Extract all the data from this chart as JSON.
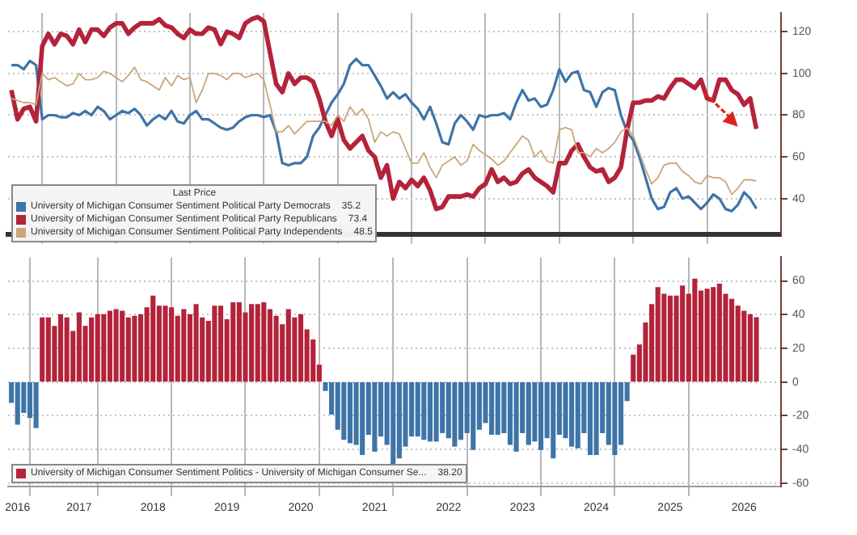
{
  "chart_data": [
    {
      "type": "line",
      "tick_labels": "y",
      "grid": true,
      "legend": "bottom left",
      "legend_title": "Last Price",
      "x": [
        "2016-08",
        "2016-09",
        "2016-10",
        "2016-11",
        "2016-12",
        "2017-01",
        "2017-02",
        "2017-03",
        "2017-04",
        "2017-05",
        "2017-06",
        "2017-07",
        "2017-08",
        "2017-09",
        "2017-10",
        "2017-11",
        "2017-12",
        "2018-01",
        "2018-02",
        "2018-03",
        "2018-04",
        "2018-05",
        "2018-06",
        "2018-07",
        "2018-08",
        "2018-09",
        "2018-10",
        "2018-11",
        "2018-12",
        "2019-01",
        "2019-02",
        "2019-03",
        "2019-04",
        "2019-05",
        "2019-06",
        "2019-07",
        "2019-08",
        "2019-09",
        "2019-10",
        "2019-11",
        "2019-12",
        "2020-01",
        "2020-02",
        "2020-03",
        "2020-04",
        "2020-05",
        "2020-06",
        "2020-07",
        "2020-08",
        "2020-09",
        "2020-10",
        "2020-11",
        "2020-12",
        "2021-01",
        "2021-02",
        "2021-03",
        "2021-04",
        "2021-05",
        "2021-06",
        "2021-07",
        "2021-08",
        "2021-09",
        "2021-10",
        "2021-11",
        "2021-12",
        "2022-01",
        "2022-02",
        "2022-03",
        "2022-04",
        "2022-05",
        "2022-06",
        "2022-07",
        "2022-08",
        "2022-09",
        "2022-10",
        "2022-11",
        "2022-12",
        "2023-01",
        "2023-02",
        "2023-03",
        "2023-04",
        "2023-05",
        "2023-06",
        "2023-07",
        "2023-08",
        "2023-09",
        "2023-10",
        "2023-11",
        "2023-12",
        "2024-01",
        "2024-02",
        "2024-03",
        "2024-04",
        "2024-05",
        "2024-06",
        "2024-07",
        "2024-08",
        "2024-09",
        "2024-10",
        "2024-11",
        "2024-12",
        "2025-01",
        "2025-02",
        "2025-03",
        "2025-04",
        "2025-05",
        "2025-06",
        "2025-07",
        "2025-08",
        "2025-09",
        "2025-10",
        "2025-11",
        "2025-12",
        "2026-01",
        "2026-02",
        "2026-03",
        "2026-04",
        "2026-05",
        "2026-06",
        "2026-07",
        "2026-08",
        "2026-09"
      ],
      "xlim": [
        "2016-07-15",
        "2027-01"
      ],
      "xticks": [
        {
          "value": "2017-01",
          "label": null
        },
        {
          "value": "2018-01",
          "label": null
        },
        {
          "value": "2019-01",
          "label": null
        },
        {
          "value": "2020-01",
          "label": null
        },
        {
          "value": "2021-01",
          "label": null
        },
        {
          "value": "2022-01",
          "label": null
        },
        {
          "value": "2023-01",
          "label": null
        },
        {
          "value": "2024-01",
          "label": null
        },
        {
          "value": "2025-01",
          "label": null
        },
        {
          "value": "2026-01",
          "label": null
        }
      ],
      "ylim": [
        23,
        129
      ],
      "yticks": [
        40,
        60,
        80,
        100,
        120
      ],
      "annotations": [
        "35.2",
        "73.4",
        "48.5"
      ],
      "series": [
        {
          "name": "University of Michigan Consumer Sentiment Political Party Democrats",
          "color": "#3e74a8",
          "values": [
            104,
            104,
            102,
            106,
            104,
            78,
            80,
            80,
            79,
            79,
            81,
            80,
            82,
            80,
            84,
            82,
            78,
            80,
            82,
            81,
            83,
            80,
            75,
            78,
            80,
            78,
            82,
            77,
            76,
            80,
            82,
            78,
            78,
            76,
            74,
            73,
            74,
            77,
            79,
            80,
            80,
            79,
            80,
            72,
            57,
            56,
            57,
            57,
            60,
            70,
            74,
            80,
            86,
            90,
            95,
            104,
            107,
            104,
            104,
            99,
            94,
            88,
            91,
            88,
            90,
            86,
            83,
            78,
            84,
            76,
            67,
            66,
            76,
            80,
            77,
            73,
            80,
            79,
            80,
            80,
            81,
            78,
            86,
            92,
            87,
            88,
            84,
            85,
            92,
            102,
            96,
            100,
            101,
            92,
            91,
            84,
            91,
            93,
            92,
            80,
            72,
            68,
            60,
            50,
            40,
            35,
            36,
            43,
            45,
            40,
            41,
            38,
            35,
            38,
            42,
            40,
            35,
            34,
            37,
            43,
            40,
            35.2
          ]
        },
        {
          "name": "University of Michigan Consumer Sentiment Political Party Republicans",
          "color": "#b3233a",
          "values": [
            92,
            78,
            83,
            84,
            77,
            113,
            119,
            114,
            119,
            118,
            114,
            121,
            115,
            121,
            121,
            118,
            122,
            124,
            124,
            119,
            122,
            124,
            124,
            124,
            126,
            123,
            122,
            119,
            117,
            121,
            119,
            119,
            122,
            121,
            114,
            120,
            119,
            117,
            124,
            126,
            127,
            125,
            110,
            95,
            91,
            100,
            95,
            98,
            98,
            96,
            88,
            77,
            70,
            78,
            68,
            64,
            67,
            70,
            63,
            60,
            50,
            56,
            40,
            48,
            45,
            49,
            46,
            50,
            44,
            35,
            36,
            41,
            41,
            41,
            42,
            41,
            45,
            47,
            54,
            48,
            50,
            47,
            48,
            52,
            54,
            50,
            48,
            46,
            43,
            57,
            57,
            63,
            66,
            60,
            55,
            53,
            54,
            48,
            50,
            55,
            73,
            86,
            86,
            87,
            87,
            89,
            88,
            93,
            97,
            97,
            95,
            93,
            97,
            88,
            87,
            97,
            97,
            92,
            90,
            85,
            88,
            73.4
          ]
        },
        {
          "name": "University of Michigan Consumer Sentiment Political Party Independents",
          "color": "#c9a77a",
          "values": [
            88,
            87,
            86,
            86,
            85,
            100,
            97,
            98,
            96,
            94,
            95,
            100,
            97,
            97,
            98,
            101,
            100,
            98,
            96,
            99,
            103,
            97,
            96,
            94,
            92,
            98,
            94,
            99,
            97,
            98,
            86,
            92,
            100,
            100,
            99,
            97,
            100,
            100,
            98,
            99,
            100,
            97,
            85,
            72,
            72,
            75,
            71,
            74,
            77,
            77,
            77,
            77,
            75,
            80,
            77,
            84,
            80,
            83,
            78,
            67,
            72,
            70,
            72,
            71,
            64,
            57,
            57,
            62,
            55,
            50,
            56,
            58,
            60,
            56,
            58,
            66,
            63,
            61,
            59,
            56,
            58,
            62,
            66,
            70,
            68,
            60,
            63,
            58,
            57,
            73,
            74,
            73,
            62,
            62,
            60,
            64,
            62,
            64,
            67,
            72,
            74,
            70,
            62,
            54,
            47,
            50,
            56,
            57,
            57,
            53,
            51,
            48,
            47,
            51,
            50,
            50,
            48,
            42,
            45,
            49,
            49,
            48.5
          ]
        }
      ]
    },
    {
      "type": "bar",
      "grid": true,
      "legend": "bottom left",
      "x": [
        "2016-08",
        "2016-09",
        "2016-10",
        "2016-11",
        "2016-12",
        "2017-01",
        "2017-02",
        "2017-03",
        "2017-04",
        "2017-05",
        "2017-06",
        "2017-07",
        "2017-08",
        "2017-09",
        "2017-10",
        "2017-11",
        "2017-12",
        "2018-01",
        "2018-02",
        "2018-03",
        "2018-04",
        "2018-05",
        "2018-06",
        "2018-07",
        "2018-08",
        "2018-09",
        "2018-10",
        "2018-11",
        "2018-12",
        "2019-01",
        "2019-02",
        "2019-03",
        "2019-04",
        "2019-05",
        "2019-06",
        "2019-07",
        "2019-08",
        "2019-09",
        "2019-10",
        "2019-11",
        "2019-12",
        "2020-01",
        "2020-02",
        "2020-03",
        "2020-04",
        "2020-05",
        "2020-06",
        "2020-07",
        "2020-08",
        "2020-09",
        "2020-10",
        "2020-11",
        "2020-12",
        "2021-01",
        "2021-02",
        "2021-03",
        "2021-04",
        "2021-05",
        "2021-06",
        "2021-07",
        "2021-08",
        "2021-09",
        "2021-10",
        "2021-11",
        "2021-12",
        "2022-01",
        "2022-02",
        "2022-03",
        "2022-04",
        "2022-05",
        "2022-06",
        "2022-07",
        "2022-08",
        "2022-09",
        "2022-10",
        "2022-11",
        "2022-12",
        "2023-01",
        "2023-02",
        "2023-03",
        "2023-04",
        "2023-05",
        "2023-06",
        "2023-07",
        "2023-08",
        "2023-09",
        "2023-10",
        "2023-11",
        "2023-12",
        "2024-01",
        "2024-02",
        "2024-03",
        "2024-04",
        "2024-05",
        "2024-06",
        "2024-07",
        "2024-08",
        "2024-09",
        "2024-10",
        "2024-11",
        "2024-12",
        "2025-01",
        "2025-02",
        "2025-03",
        "2025-04",
        "2025-05",
        "2025-06",
        "2025-07",
        "2025-08",
        "2025-09",
        "2025-10",
        "2025-11",
        "2025-12",
        "2026-01",
        "2026-02",
        "2026-03",
        "2026-04",
        "2026-05",
        "2026-06",
        "2026-07",
        "2026-08",
        "2026-09"
      ],
      "xlim": [
        "2016-07-15",
        "2027-01"
      ],
      "xticks": [
        {
          "value": "2016-09",
          "label": "2016"
        },
        {
          "value": "2017-01",
          "label": null
        },
        {
          "value": "2017-07",
          "label": "2017"
        },
        {
          "value": "2018-01",
          "label": null
        },
        {
          "value": "2018-07",
          "label": "2018"
        },
        {
          "value": "2019-01",
          "label": null
        },
        {
          "value": "2019-07",
          "label": "2019"
        },
        {
          "value": "2020-01",
          "label": null
        },
        {
          "value": "2020-07",
          "label": "2020"
        },
        {
          "value": "2021-01",
          "label": null
        },
        {
          "value": "2021-07",
          "label": "2021"
        },
        {
          "value": "2022-01",
          "label": null
        },
        {
          "value": "2022-07",
          "label": "2022"
        },
        {
          "value": "2023-01",
          "label": null
        },
        {
          "value": "2023-07",
          "label": "2023"
        },
        {
          "value": "2024-01",
          "label": null
        },
        {
          "value": "2024-07",
          "label": "2024"
        },
        {
          "value": "2025-01",
          "label": null
        },
        {
          "value": "2025-07",
          "label": "2025"
        },
        {
          "value": "2026-01",
          "label": null
        },
        {
          "value": "2026-07",
          "label": "2026"
        }
      ],
      "ylim": [
        -62,
        74
      ],
      "yticks": [
        -60,
        -40,
        -20,
        0,
        20,
        40,
        60
      ],
      "annotations": [
        "38.20"
      ],
      "series": [
        {
          "name": "University of Michigan Consumer Sentiment Politics - University of Michigan Consumer Se...",
          "color": "#b3233a",
          "colors": [
            "#3e74a8",
            "#3e74a8",
            "#3e74a8",
            "#3e74a8",
            "#3e74a8",
            "#b3233a",
            "#b3233a",
            "#b3233a",
            "#b3233a",
            "#b3233a",
            "#b3233a",
            "#b3233a",
            "#b3233a",
            "#b3233a",
            "#b3233a",
            "#b3233a",
            "#b3233a",
            "#b3233a",
            "#b3233a",
            "#b3233a",
            "#b3233a",
            "#b3233a",
            "#b3233a",
            "#b3233a",
            "#b3233a",
            "#b3233a",
            "#b3233a",
            "#b3233a",
            "#b3233a",
            "#b3233a",
            "#b3233a",
            "#b3233a",
            "#b3233a",
            "#b3233a",
            "#b3233a",
            "#b3233a",
            "#b3233a",
            "#b3233a",
            "#b3233a",
            "#b3233a",
            "#b3233a",
            "#b3233a",
            "#b3233a",
            "#b3233a",
            "#b3233a",
            "#b3233a",
            "#b3233a",
            "#b3233a",
            "#b3233a",
            "#b3233a",
            "#b3233a",
            "#3e74a8",
            "#3e74a8",
            "#3e74a8",
            "#3e74a8",
            "#3e74a8",
            "#3e74a8",
            "#3e74a8",
            "#3e74a8",
            "#3e74a8",
            "#3e74a8",
            "#3e74a8",
            "#3e74a8",
            "#3e74a8",
            "#3e74a8",
            "#3e74a8",
            "#3e74a8",
            "#3e74a8",
            "#3e74a8",
            "#3e74a8",
            "#3e74a8",
            "#3e74a8",
            "#3e74a8",
            "#3e74a8",
            "#3e74a8",
            "#3e74a8",
            "#3e74a8",
            "#3e74a8",
            "#3e74a8",
            "#3e74a8",
            "#3e74a8",
            "#3e74a8",
            "#3e74a8",
            "#3e74a8",
            "#3e74a8",
            "#3e74a8",
            "#3e74a8",
            "#3e74a8",
            "#3e74a8",
            "#3e74a8",
            "#3e74a8",
            "#3e74a8",
            "#3e74a8",
            "#3e74a8",
            "#3e74a8",
            "#3e74a8",
            "#3e74a8",
            "#3e74a8",
            "#3e74a8",
            "#3e74a8",
            "#3e74a8",
            "#b3233a",
            "#b3233a",
            "#b3233a",
            "#b3233a",
            "#b3233a",
            "#b3233a",
            "#b3233a",
            "#b3233a",
            "#b3233a",
            "#b3233a",
            "#b3233a",
            "#b3233a",
            "#b3233a",
            "#b3233a",
            "#b3233a",
            "#b3233a",
            "#b3233a",
            "#b3233a",
            "#b3233a",
            "#b3233a",
            "#b3233a"
          ],
          "values": [
            -12,
            -25,
            -18,
            -21,
            -27,
            38,
            38,
            33,
            40,
            38,
            30,
            41,
            33,
            38,
            40,
            40,
            42,
            43,
            42,
            38,
            39,
            40,
            44,
            51,
            45,
            45,
            44,
            39,
            43,
            40,
            46,
            38,
            36,
            45,
            45,
            37,
            47,
            47,
            41,
            46,
            46,
            47,
            43,
            39,
            34,
            43,
            38,
            40,
            31,
            25,
            10,
            -5,
            -19,
            -28,
            -34,
            -36,
            -37,
            -43,
            -31,
            -41,
            -32,
            -37,
            -49,
            -45,
            -38,
            -32,
            -32,
            -34,
            -35,
            -35,
            -30,
            -33,
            -38,
            -34,
            -30,
            -40,
            -28,
            -24,
            -31,
            -31,
            -30,
            -37,
            -41,
            -30,
            -37,
            -35,
            -40,
            -33,
            -45,
            -31,
            -33,
            -38,
            -39,
            -30,
            -43,
            -43,
            -30,
            -37,
            -43,
            -37,
            -11,
            16,
            22,
            35,
            46,
            56,
            52,
            51,
            51,
            57,
            52,
            61,
            54,
            55,
            56,
            58,
            52,
            49,
            45,
            42,
            40,
            38.2
          ]
        }
      ]
    }
  ]
}
